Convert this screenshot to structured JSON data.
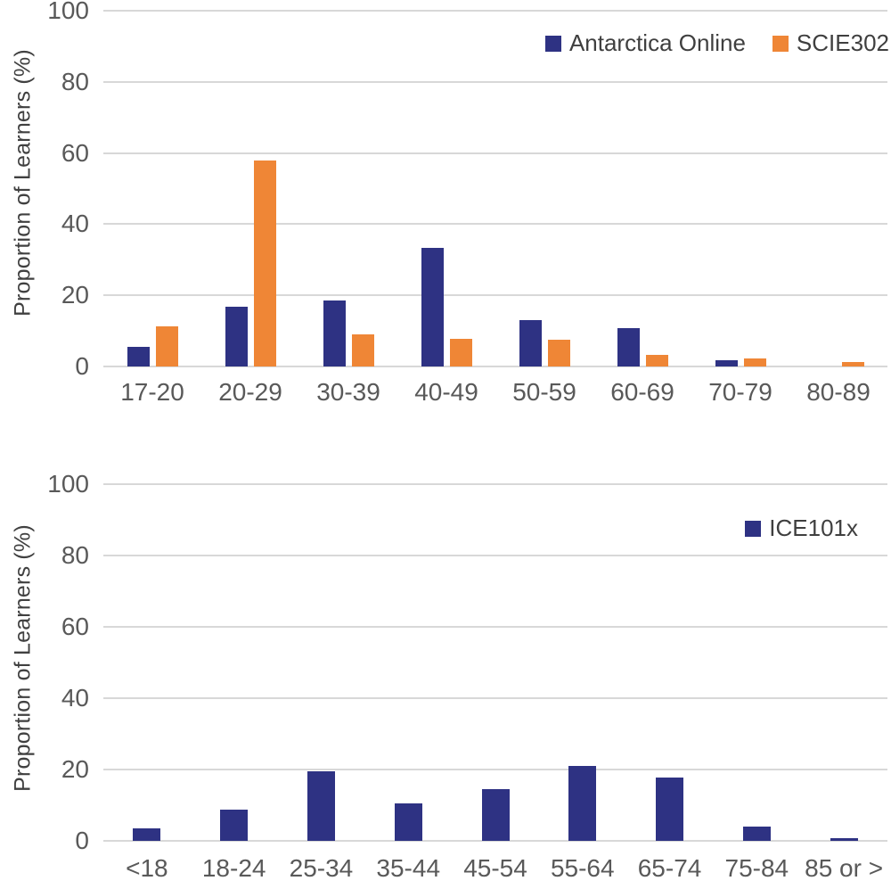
{
  "colors": {
    "navy": "#2e3283",
    "orange": "#ef8636",
    "gridline": "#d8d8d8",
    "tick_text": "#595959",
    "axis_title_text": "#404040",
    "legend_text": "#3f3f3f",
    "background": "#ffffff"
  },
  "chart_data": [
    {
      "type": "bar",
      "title": "",
      "xlabel": "",
      "ylabel": "Proportion of Learners (%)",
      "ylim": [
        0,
        100
      ],
      "yticks": [
        0,
        20,
        40,
        60,
        80,
        100
      ],
      "grid": true,
      "legend_position": "top-right-inside",
      "categories": [
        "17-20",
        "20-29",
        "30-39",
        "40-49",
        "50-59",
        "60-69",
        "70-79",
        "80-89"
      ],
      "series": [
        {
          "name": "Antarctica Online",
          "color_key": "navy",
          "values": [
            5.6,
            16.8,
            18.6,
            33.3,
            13.0,
            10.8,
            1.8,
            0
          ]
        },
        {
          "name": "SCIE302",
          "color_key": "orange",
          "values": [
            11.2,
            58.0,
            9.0,
            7.8,
            7.5,
            3.3,
            2.2,
            1.2
          ]
        }
      ]
    },
    {
      "type": "bar",
      "title": "",
      "xlabel": "",
      "ylabel": "Proportion of Learners (%)",
      "ylim": [
        0,
        100
      ],
      "yticks": [
        0,
        20,
        40,
        60,
        80,
        100
      ],
      "grid": true,
      "legend_position": "top-right-inside",
      "categories": [
        "<18",
        "18-24",
        "25-34",
        "35-44",
        "45-54",
        "55-64",
        "65-74",
        "75-84",
        "85 or >"
      ],
      "series": [
        {
          "name": "ICE101x",
          "color_key": "navy",
          "values": [
            3.4,
            8.7,
            19.4,
            10.6,
            14.6,
            21.0,
            17.7,
            3.9,
            0.7
          ]
        }
      ]
    }
  ]
}
